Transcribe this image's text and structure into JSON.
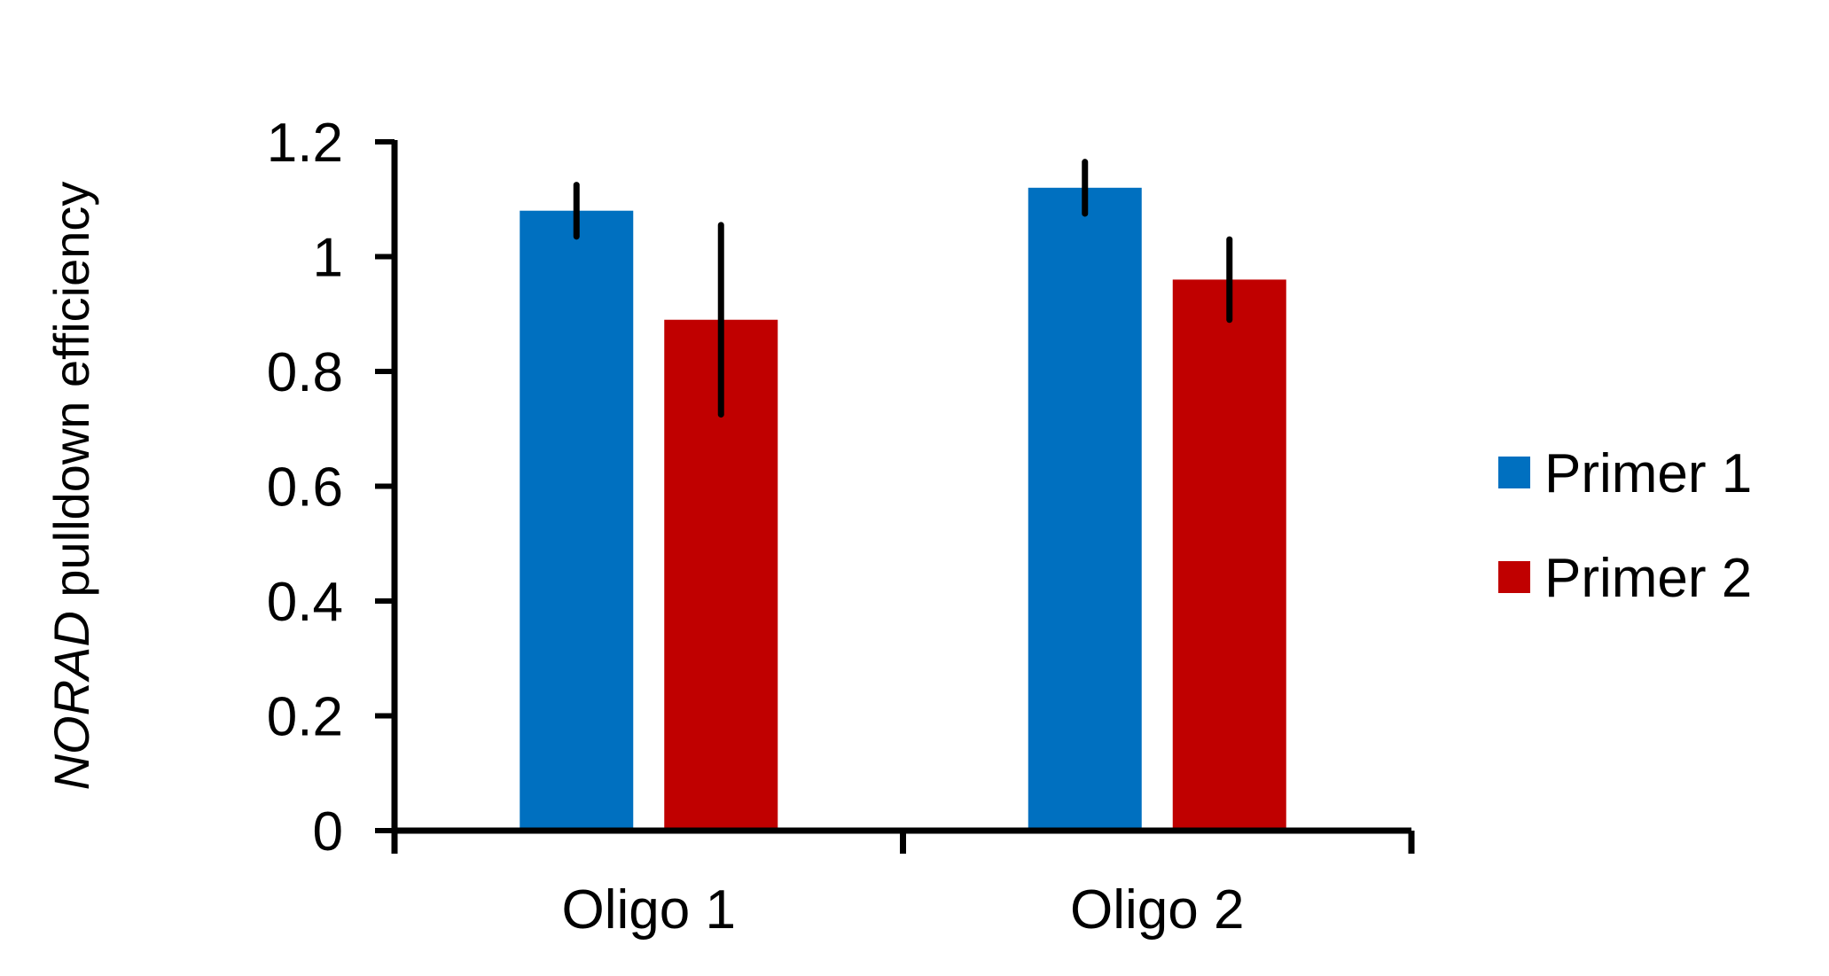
{
  "chart_data": {
    "type": "bar",
    "title": "",
    "ylabel_italic": "NORAD",
    "ylabel_rest": " pulldown efficiency",
    "xlabel": "",
    "categories": [
      "Oligo 1",
      "Oligo 2"
    ],
    "series": [
      {
        "name": "Primer 1",
        "color": "#0070C0",
        "values": [
          1.08,
          1.12
        ],
        "errors": [
          0.045,
          0.045
        ]
      },
      {
        "name": "Primer 2",
        "color": "#C00000",
        "values": [
          0.89,
          0.96
        ],
        "errors": [
          0.165,
          0.07
        ]
      }
    ],
    "ylim": [
      0,
      1.2
    ],
    "yticks": [
      "0",
      "0.2",
      "0.4",
      "0.6",
      "0.8",
      "1",
      "1.2"
    ],
    "grid": false,
    "legend_position": "right"
  }
}
